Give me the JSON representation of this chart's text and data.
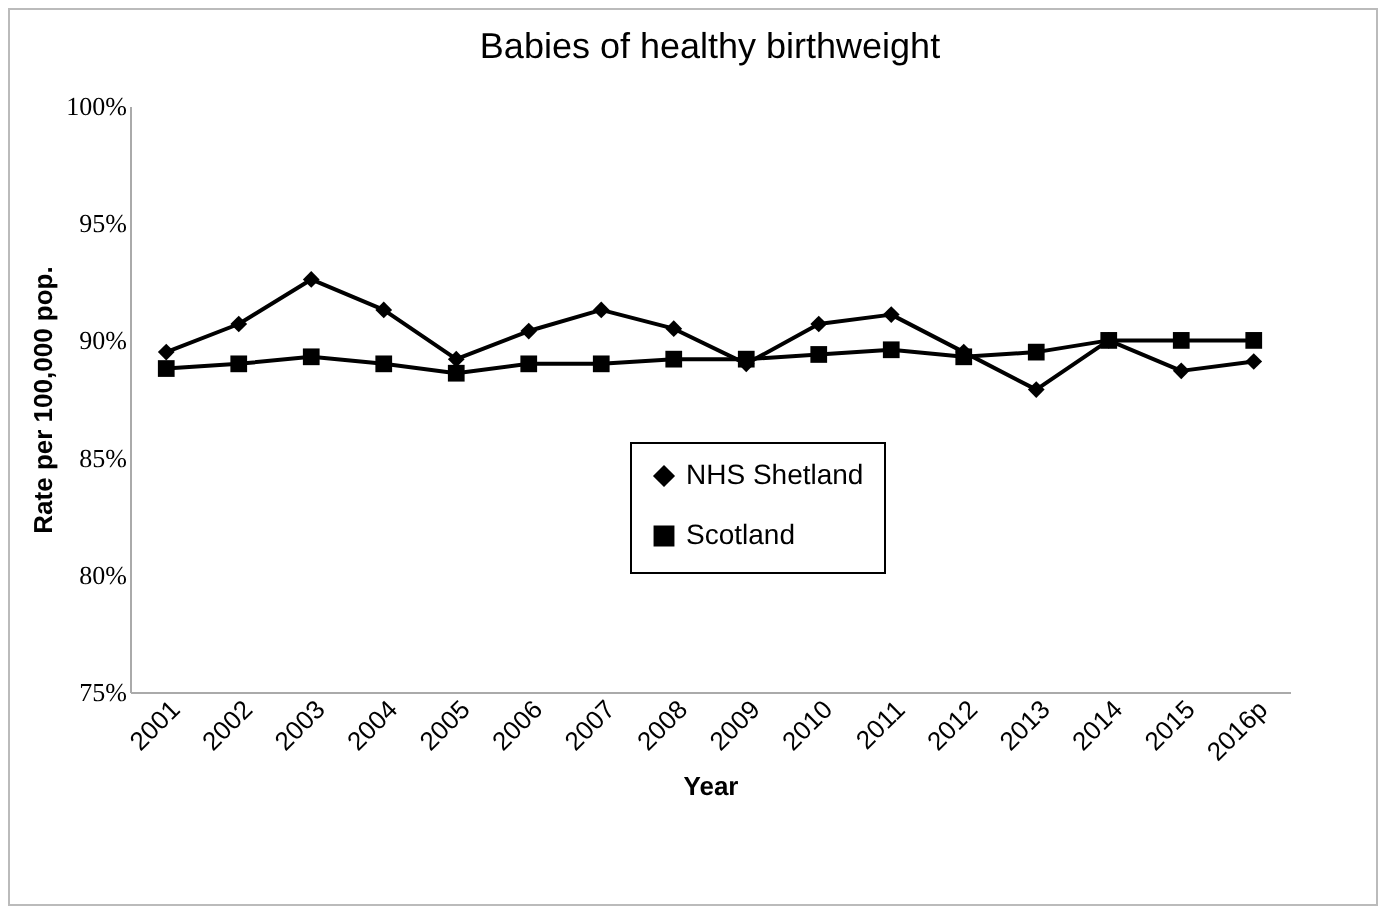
{
  "chart_data": {
    "type": "line",
    "title": "Babies of healthy birthweight",
    "xlabel": "Year",
    "ylabel": "Rate per 100,000 pop.",
    "categories": [
      "2001",
      "2002",
      "2003",
      "2004",
      "2005",
      "2006",
      "2007",
      "2008",
      "2009",
      "2010",
      "2011",
      "2012",
      "2013",
      "2014",
      "2015",
      "2016p"
    ],
    "series": [
      {
        "name": "NHS Shetland",
        "color": "#000000",
        "marker": "diamond",
        "values": [
          89.5,
          90.7,
          92.6,
          91.3,
          89.2,
          90.4,
          91.3,
          90.5,
          89.0,
          90.7,
          91.1,
          89.5,
          87.9,
          90.0,
          88.7,
          89.1
        ]
      },
      {
        "name": "Scotland",
        "color": "#000000",
        "marker": "square",
        "values": [
          88.8,
          89.0,
          89.3,
          89.0,
          88.6,
          89.0,
          89.0,
          89.2,
          89.2,
          89.4,
          89.6,
          89.3,
          89.5,
          90.0,
          90.0,
          90.0
        ]
      }
    ],
    "ylim": [
      75,
      100
    ],
    "yticks": [
      {
        "value": 75,
        "label": "75%"
      },
      {
        "value": 80,
        "label": "80%"
      },
      {
        "value": 85,
        "label": "85%"
      },
      {
        "value": 90,
        "label": "90%"
      },
      {
        "value": 95,
        "label": "95%"
      },
      {
        "value": 100,
        "label": "100%"
      }
    ],
    "grid": false,
    "legend": "bottom",
    "line_style": "solid"
  }
}
